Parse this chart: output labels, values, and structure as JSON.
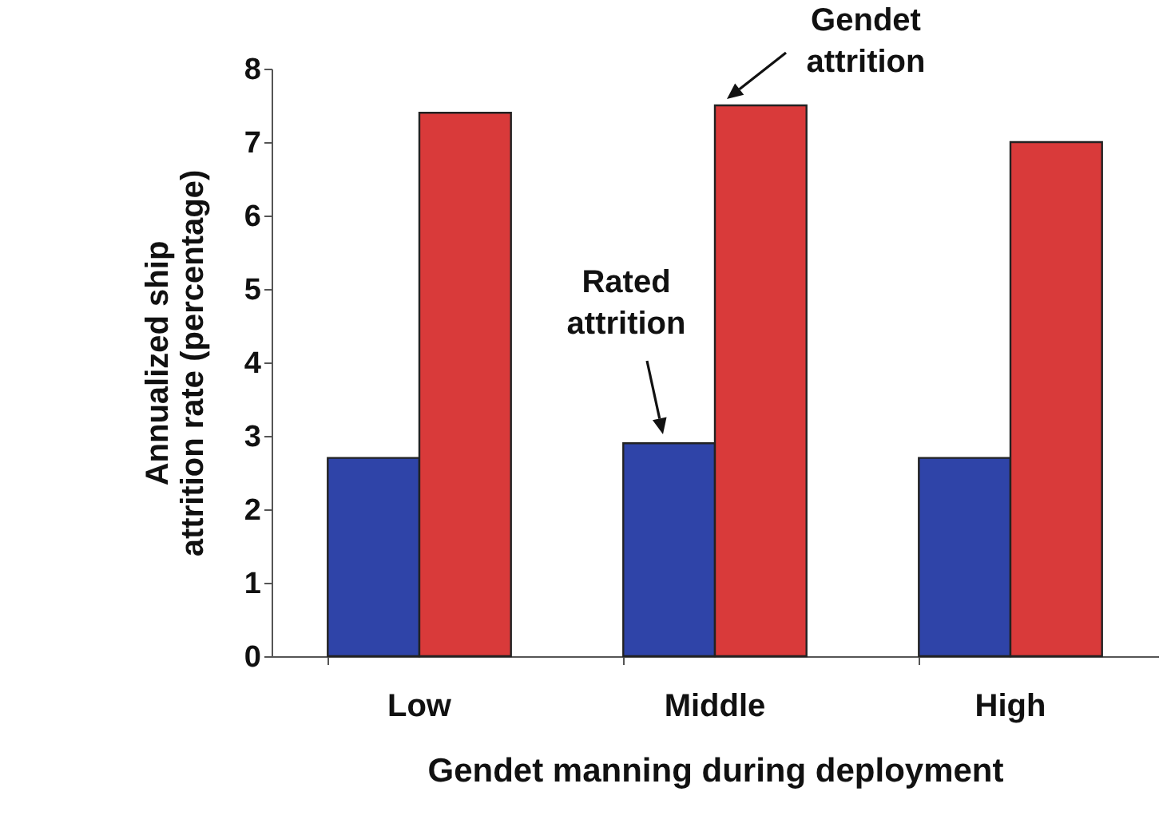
{
  "chart_data": {
    "type": "bar",
    "xlabel": "Gendet manning during deployment",
    "ylabel": "Annualized ship\nattrition rate (percentage)",
    "categories": [
      "Low",
      "Middle",
      "High"
    ],
    "series": [
      {
        "color": "#2f44a8",
        "values": [
          2.7,
          2.9,
          2.7
        ]
      },
      {
        "color": "#d93a3a",
        "values": [
          7.4,
          7.5,
          7.0
        ]
      }
    ],
    "ylim": [
      0,
      8
    ],
    "yticks": [
      0,
      1,
      2,
      3,
      4,
      5,
      6,
      7,
      8
    ],
    "annotations": [
      "Rated\nattrition",
      "Gendet\nattrition"
    ]
  }
}
